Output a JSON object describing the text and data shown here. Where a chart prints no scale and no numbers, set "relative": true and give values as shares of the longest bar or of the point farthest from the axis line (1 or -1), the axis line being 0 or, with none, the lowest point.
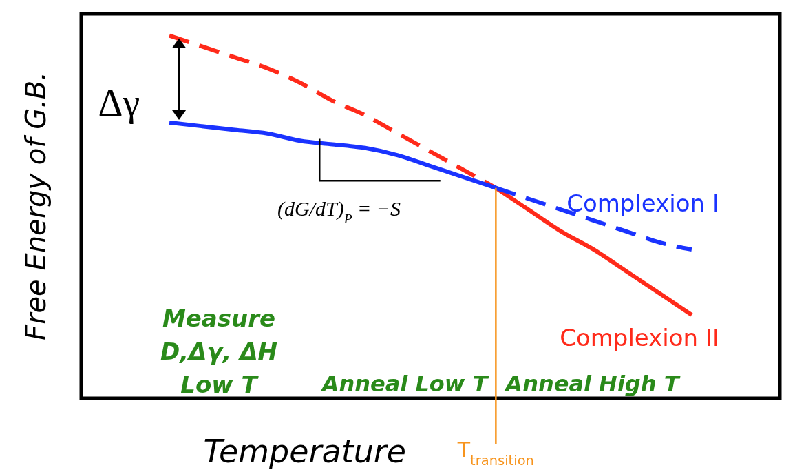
{
  "chart_data": {
    "type": "line",
    "relative": true,
    "xlabel": "Temperature",
    "ylabel": "Free Energy of G.B.",
    "categories": [
      null,
      null,
      null,
      null,
      null,
      null,
      null,
      null,
      null,
      null,
      null,
      null,
      null,
      null,
      null,
      null,
      null
    ],
    "series": [
      {
        "color": "#ff2a1a",
        "line_style": "dashed",
        "values": [
          1,
          0.97,
          0.94,
          0.91,
          0.87,
          0.82,
          0.78,
          0.73,
          0.68,
          0.63,
          0.58,
          null,
          null,
          null,
          null,
          null,
          null
        ]
      },
      {
        "name": "Complexion II",
        "color": "#ff2a1a",
        "line_style": "solid",
        "values": [
          null,
          null,
          null,
          null,
          null,
          null,
          null,
          null,
          null,
          null,
          0.58,
          0.52,
          0.46,
          0.41,
          0.35,
          0.29,
          0.23
        ]
      },
      {
        "color": "#1a33ff",
        "line_style": "solid",
        "values": [
          0.76,
          0.75,
          0.74,
          0.73,
          0.71,
          0.7,
          0.69,
          0.67,
          0.64,
          0.61,
          0.58,
          null,
          null,
          null,
          null,
          null,
          null
        ]
      },
      {
        "name": "Complexion I",
        "color": "#1a33ff",
        "line_style": "dashed",
        "values": [
          null,
          null,
          null,
          null,
          null,
          null,
          null,
          null,
          null,
          null,
          0.58,
          0.55,
          0.52,
          0.49,
          0.46,
          0.43,
          0.41
        ]
      }
    ],
    "annotations": [
      "Δγ",
      "(dG/dT)$_{P}$ = −S",
      "Measure\nD,Δγ, ΔH\nLow T",
      "Anneal Low T",
      "Anneal High T",
      "T$_{transition}$"
    ]
  }
}
